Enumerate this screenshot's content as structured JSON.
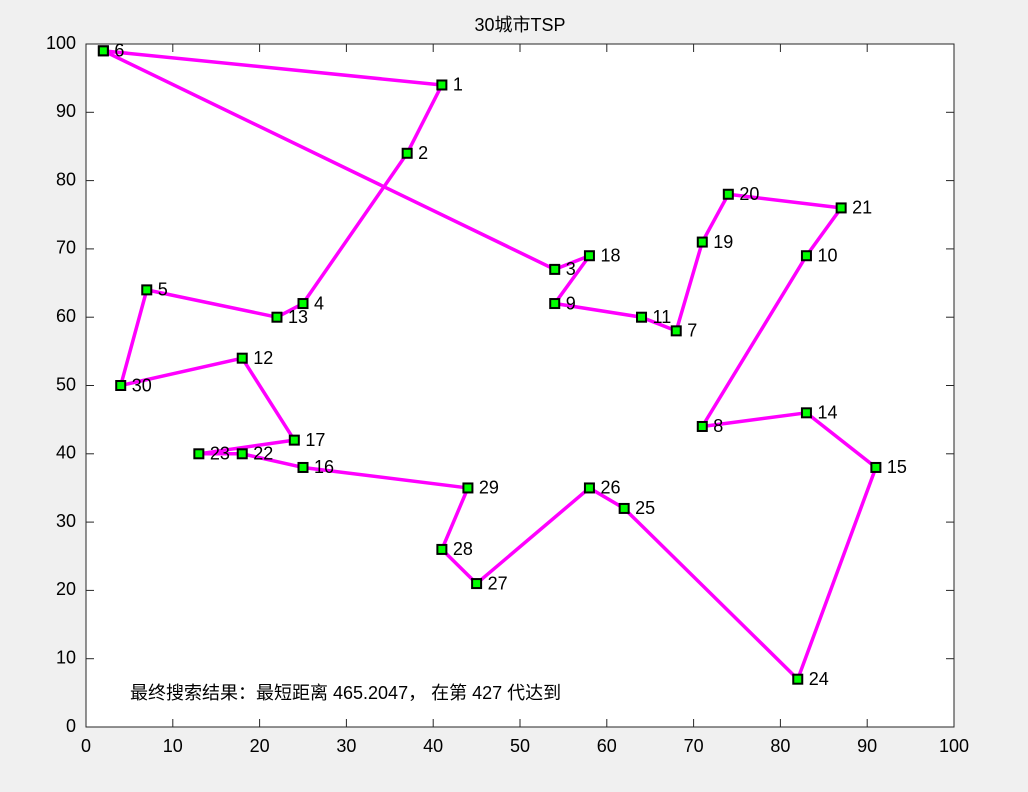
{
  "chart_data": {
    "type": "line",
    "title": "30城市TSP",
    "annotation": "最终搜索结果：最短距离 465.2047， 在第 427 代达到",
    "xlim": [
      0,
      100
    ],
    "ylim": [
      0,
      100
    ],
    "xticks": [
      0,
      10,
      20,
      30,
      40,
      50,
      60,
      70,
      80,
      90,
      100
    ],
    "yticks": [
      0,
      10,
      20,
      30,
      40,
      50,
      60,
      70,
      80,
      90,
      100
    ],
    "grid": false,
    "series": [
      {
        "color": "#ff00ff",
        "marker_color": "#00ff00",
        "marker_edge": "#000000",
        "x": [
          2,
          41,
          37,
          25,
          22,
          7,
          4,
          18,
          24,
          13,
          18,
          25,
          44,
          41,
          45,
          58,
          62,
          82,
          91,
          83,
          71,
          83,
          87,
          74,
          71,
          68,
          64,
          54,
          58,
          54,
          2
        ],
        "values": [
          99,
          94,
          84,
          62,
          60,
          64,
          50,
          54,
          42,
          40,
          40,
          38,
          35,
          26,
          21,
          35,
          32,
          7,
          38,
          46,
          44,
          69,
          76,
          78,
          71,
          58,
          60,
          62,
          69,
          67,
          99
        ],
        "labels": [
          6,
          1,
          2,
          4,
          13,
          5,
          30,
          12,
          17,
          23,
          22,
          16,
          29,
          28,
          27,
          26,
          25,
          24,
          15,
          14,
          8,
          10,
          21,
          20,
          19,
          7,
          11,
          9,
          18,
          3,
          null
        ]
      }
    ]
  }
}
